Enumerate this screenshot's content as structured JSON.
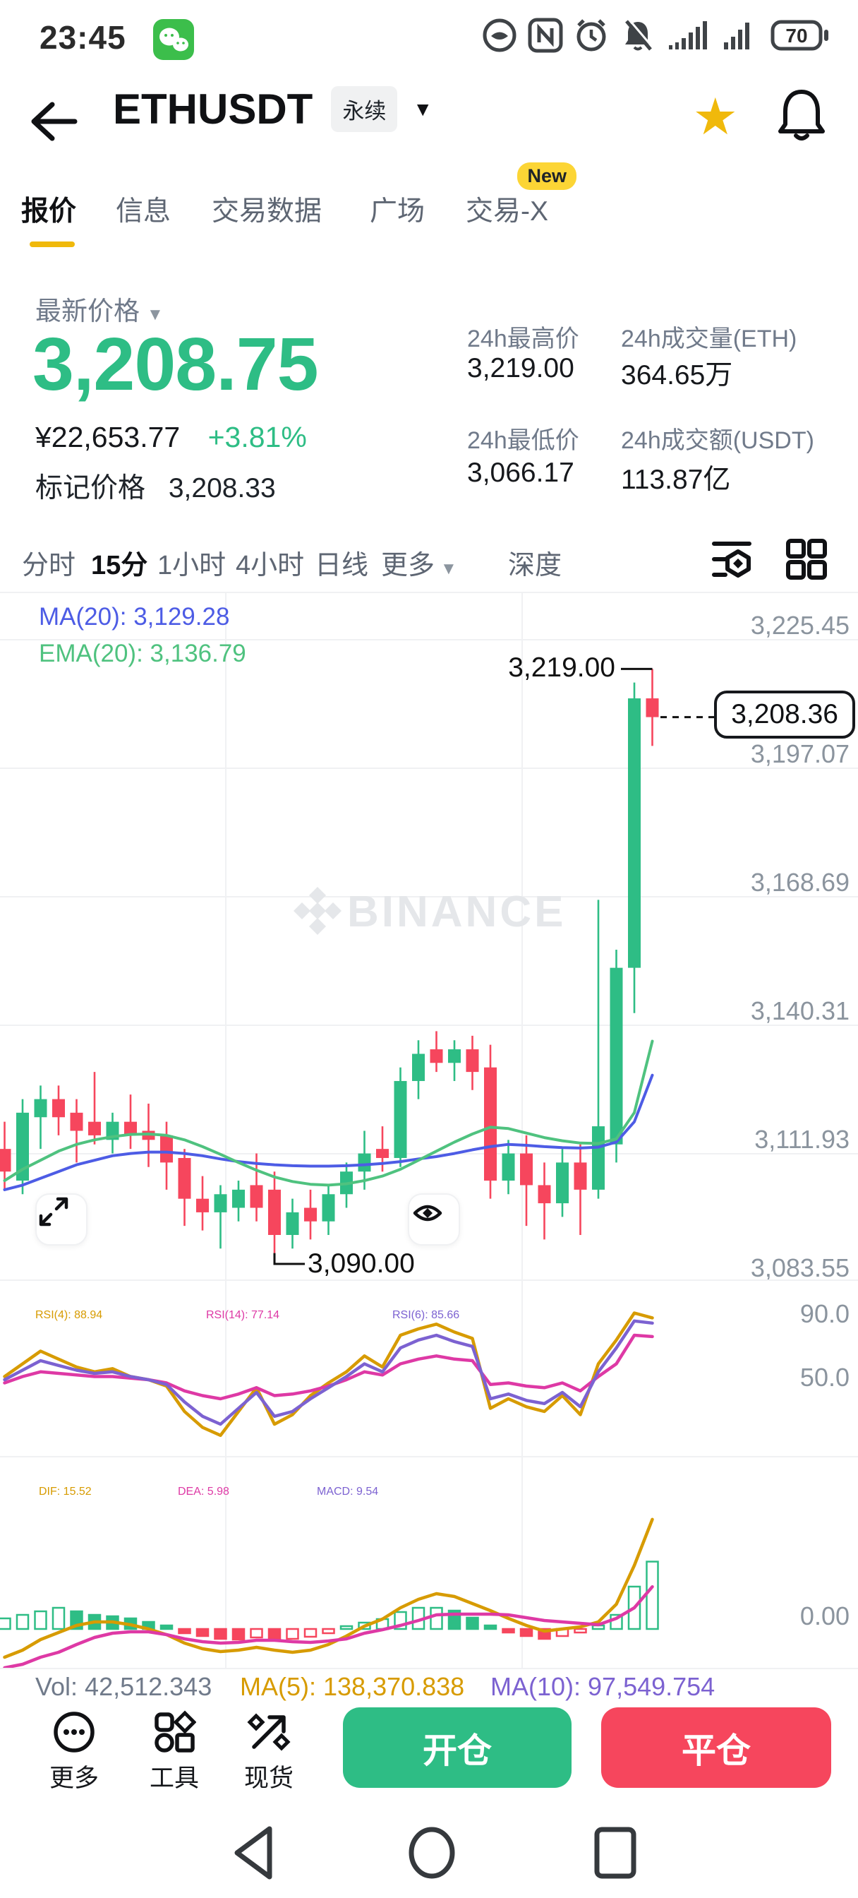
{
  "status_bar": {
    "time": "23:45",
    "battery_percent": "70"
  },
  "header": {
    "symbol": "ETHUSDT",
    "contract_badge": "永续"
  },
  "nav_tabs": {
    "items": [
      {
        "label": "报价",
        "active": true
      },
      {
        "label": "信息"
      },
      {
        "label": "交易数据"
      },
      {
        "label": "广场"
      },
      {
        "label": "交易-X",
        "badge": "New"
      }
    ]
  },
  "ticker": {
    "last_price_label": "最新价格",
    "last_price": "3,208.75",
    "fiat_price": "¥22,653.77",
    "change_percent": "+3.81%",
    "mark_price_label": "标记价格",
    "mark_price": "3,208.33",
    "stats": [
      {
        "label": "24h最高价",
        "value": "3,219.00"
      },
      {
        "label": "24h成交量(ETH)",
        "value": "364.65万"
      },
      {
        "label": "24h最低价",
        "value": "3,066.17"
      },
      {
        "label": "24h成交额(USDT)",
        "value": "113.87亿"
      }
    ]
  },
  "timeframe_bar": {
    "items": [
      {
        "label": "分时"
      },
      {
        "label": "15分",
        "active": true
      },
      {
        "label": "1小时"
      },
      {
        "label": "4小时"
      },
      {
        "label": "日线"
      }
    ],
    "more_label": "更多",
    "depth_label": "深度"
  },
  "chart_data": [
    {
      "type": "candlestick",
      "timeframe": "15分",
      "ma20_label": "MA(20): 3,129.28",
      "ema20_label": "EMA(20): 3,136.79",
      "watermark": "BINANCE",
      "y_ticks": [
        "3,225.45",
        "3,197.07",
        "3,168.69",
        "3,140.31",
        "3,111.93",
        "3,083.55"
      ],
      "y_tick_values": [
        3225.45,
        3197.07,
        3168.69,
        3140.31,
        3111.93,
        3083.55
      ],
      "high_annotation": {
        "label": "3,219.00",
        "value": 3219.0,
        "candle_index": 36
      },
      "low_annotation": {
        "label": "3,090.00",
        "value": 3090.0,
        "candle_index": 15
      },
      "last_price": {
        "label": "3,208.36",
        "value": 3208.36
      },
      "candles": [
        [
          3113,
          3119,
          3104,
          3108
        ],
        [
          3106,
          3124,
          3103,
          3121
        ],
        [
          3120,
          3127,
          3113,
          3124
        ],
        [
          3124,
          3127,
          3116,
          3120
        ],
        [
          3121,
          3124,
          3110,
          3117
        ],
        [
          3119,
          3130,
          3114,
          3116
        ],
        [
          3115,
          3121,
          3112,
          3119
        ],
        [
          3119,
          3125,
          3113,
          3116
        ],
        [
          3117,
          3123,
          3109,
          3115
        ],
        [
          3116,
          3119,
          3104,
          3110
        ],
        [
          3111,
          3113,
          3096,
          3102
        ],
        [
          3102,
          3107,
          3095,
          3099
        ],
        [
          3099,
          3105,
          3091,
          3103
        ],
        [
          3100,
          3106,
          3097,
          3104
        ],
        [
          3105,
          3112,
          3097,
          3100
        ],
        [
          3104,
          3108,
          3090,
          3094
        ],
        [
          3094,
          3102,
          3091,
          3099
        ],
        [
          3100,
          3104,
          3093,
          3097
        ],
        [
          3097,
          3105,
          3094,
          3103
        ],
        [
          3103,
          3110,
          3100,
          3108
        ],
        [
          3108,
          3117,
          3104,
          3112
        ],
        [
          3113,
          3118,
          3108,
          3111
        ],
        [
          3111,
          3131,
          3109,
          3128
        ],
        [
          3128,
          3137,
          3124,
          3134
        ],
        [
          3135,
          3139,
          3130,
          3132
        ],
        [
          3132,
          3137,
          3128,
          3135
        ],
        [
          3135,
          3138,
          3126,
          3130
        ],
        [
          3131,
          3136,
          3102,
          3106
        ],
        [
          3106,
          3115,
          3103,
          3112
        ],
        [
          3112,
          3116,
          3096,
          3105
        ],
        [
          3105,
          3110,
          3093,
          3101
        ],
        [
          3101,
          3113,
          3098,
          3110
        ],
        [
          3110,
          3114,
          3094,
          3104
        ],
        [
          3104,
          3168,
          3102,
          3118
        ],
        [
          3114,
          3157,
          3110,
          3153
        ],
        [
          3153,
          3216,
          3143,
          3212.5
        ],
        [
          3212.5,
          3219,
          3202,
          3208.36
        ]
      ],
      "ma20": [
        3104,
        3105,
        3106.5,
        3108,
        3109.5,
        3110.5,
        3111.5,
        3112,
        3112.3,
        3112.3,
        3112,
        3111.5,
        3110.8,
        3110.2,
        3109.8,
        3109.5,
        3109.3,
        3109.2,
        3109.2,
        3109.3,
        3109.5,
        3109.8,
        3110.2,
        3110.8,
        3111.3,
        3112,
        3112.8,
        3113.5,
        3114,
        3113.8,
        3113.5,
        3113.3,
        3113.2,
        3113.4,
        3114.5,
        3119,
        3129.28
      ],
      "ema20": [
        3106,
        3108.5,
        3110.5,
        3112.5,
        3114,
        3115,
        3115.7,
        3116.2,
        3116.3,
        3116,
        3115,
        3113.5,
        3111.8,
        3110,
        3108.3,
        3106.8,
        3105.8,
        3105.2,
        3105,
        3105.3,
        3106,
        3107,
        3108.5,
        3110.5,
        3112.5,
        3114.5,
        3116.3,
        3117.8,
        3117.5,
        3116.5,
        3115.5,
        3114.8,
        3114.3,
        3114.2,
        3115.2,
        3121,
        3136.79
      ]
    },
    {
      "type": "line",
      "name": "RSI",
      "y_ticks": [
        "90.0",
        "50.0"
      ],
      "y_tick_values": [
        90,
        50
      ],
      "series": [
        {
          "name": "RSI(4)",
          "label": "RSI(4): 88.94",
          "color": "#D79B00",
          "values": [
            52,
            60,
            68,
            63,
            58,
            55,
            57,
            52,
            50,
            46,
            30,
            20,
            15,
            30,
            45,
            22,
            28,
            40,
            48,
            55,
            65,
            58,
            78,
            82,
            85,
            80,
            76,
            32,
            38,
            33,
            30,
            40,
            28,
            60,
            75,
            92,
            88.94
          ]
        },
        {
          "name": "RSI(14)",
          "label": "RSI(14): 77.14",
          "color": "#DE39A5",
          "values": [
            48,
            52,
            55,
            54,
            53,
            52,
            52,
            51,
            50,
            48,
            43,
            40,
            38,
            41,
            45,
            40,
            41,
            43,
            46,
            50,
            55,
            53,
            60,
            63,
            65,
            63,
            62,
            47,
            48,
            46,
            45,
            48,
            43,
            52,
            60,
            78,
            77.14
          ]
        },
        {
          "name": "RSI(6)",
          "label": "RSI(6): 85.66",
          "color": "#7C62D1",
          "values": [
            50,
            56,
            62,
            59,
            56,
            54,
            55,
            52,
            50,
            47,
            36,
            27,
            22,
            32,
            42,
            27,
            30,
            38,
            45,
            52,
            60,
            55,
            70,
            75,
            78,
            74,
            71,
            38,
            41,
            37,
            35,
            42,
            33,
            55,
            70,
            87,
            85.66
          ]
        }
      ]
    },
    {
      "type": "macd",
      "name": "MACD",
      "dif_label": "DIF: 15.52",
      "dea_label": "DEA: 5.98",
      "macd_label": "MACD: 9.54",
      "y_ticks": [
        "0.00"
      ],
      "histogram": [
        1.5,
        2,
        2.5,
        3,
        2.5,
        2,
        1.8,
        1.5,
        1,
        0.5,
        -0.6,
        -1,
        -1.4,
        -1.5,
        -1.2,
        -1.5,
        -1.4,
        -1.1,
        -0.6,
        0.4,
        0.9,
        1.4,
        2.4,
        3,
        3,
        2.6,
        1.6,
        0.5,
        -0.5,
        -1,
        -1.4,
        -1,
        -0.5,
        0.5,
        2,
        6,
        9.54
      ],
      "dif": [
        -4,
        -3,
        -1.5,
        -0.5,
        0.5,
        1,
        1,
        0.6,
        0,
        -0.8,
        -2,
        -2.8,
        -3.2,
        -3,
        -2.6,
        -3,
        -3.3,
        -3,
        -2.2,
        -1,
        0.4,
        1.4,
        3,
        4.2,
        5,
        4.6,
        3.6,
        2.6,
        1.5,
        0.5,
        -0.3,
        0,
        0.3,
        1,
        3.5,
        9,
        15.52
      ],
      "dea": [
        -5.5,
        -5,
        -4,
        -3.3,
        -2.2,
        -1.2,
        -0.6,
        -0.4,
        -0.4,
        -0.8,
        -1.4,
        -1.8,
        -2,
        -1.9,
        -1.6,
        -1.6,
        -1.8,
        -1.9,
        -1.7,
        -1.4,
        -0.6,
        -0.1,
        0.5,
        1.2,
        2,
        2.1,
        2.1,
        2.1,
        2,
        1.6,
        1.2,
        1,
        0.8,
        0.6,
        1.5,
        3,
        5.98
      ]
    }
  ],
  "volume_row": {
    "vol_label": "Vol: 42,512.343",
    "ma5_label": "MA(5): 138,370.838",
    "ma10_label": "MA(10): 97,549.754"
  },
  "bottom_bar": {
    "actions": [
      {
        "label": "更多"
      },
      {
        "label": "工具"
      },
      {
        "label": "现货"
      }
    ],
    "open_label": "开仓",
    "close_label": "平仓"
  },
  "colors": {
    "up_green": "#2EBD85",
    "down_red": "#F6465D",
    "accent_yellow": "#F0B90B",
    "badge_yellow": "#FCD535",
    "ma_blue": "#4D5CE5",
    "ema_green": "#4FC27F",
    "rsi4_gold": "#D79B00",
    "rsi14_magenta": "#DE39A5",
    "rsi6_purple": "#7C62D1",
    "grid_gray": "#F0F1F3",
    "axis_text_gray": "#8B949E",
    "watermark_gray": "#E5E7EA"
  }
}
